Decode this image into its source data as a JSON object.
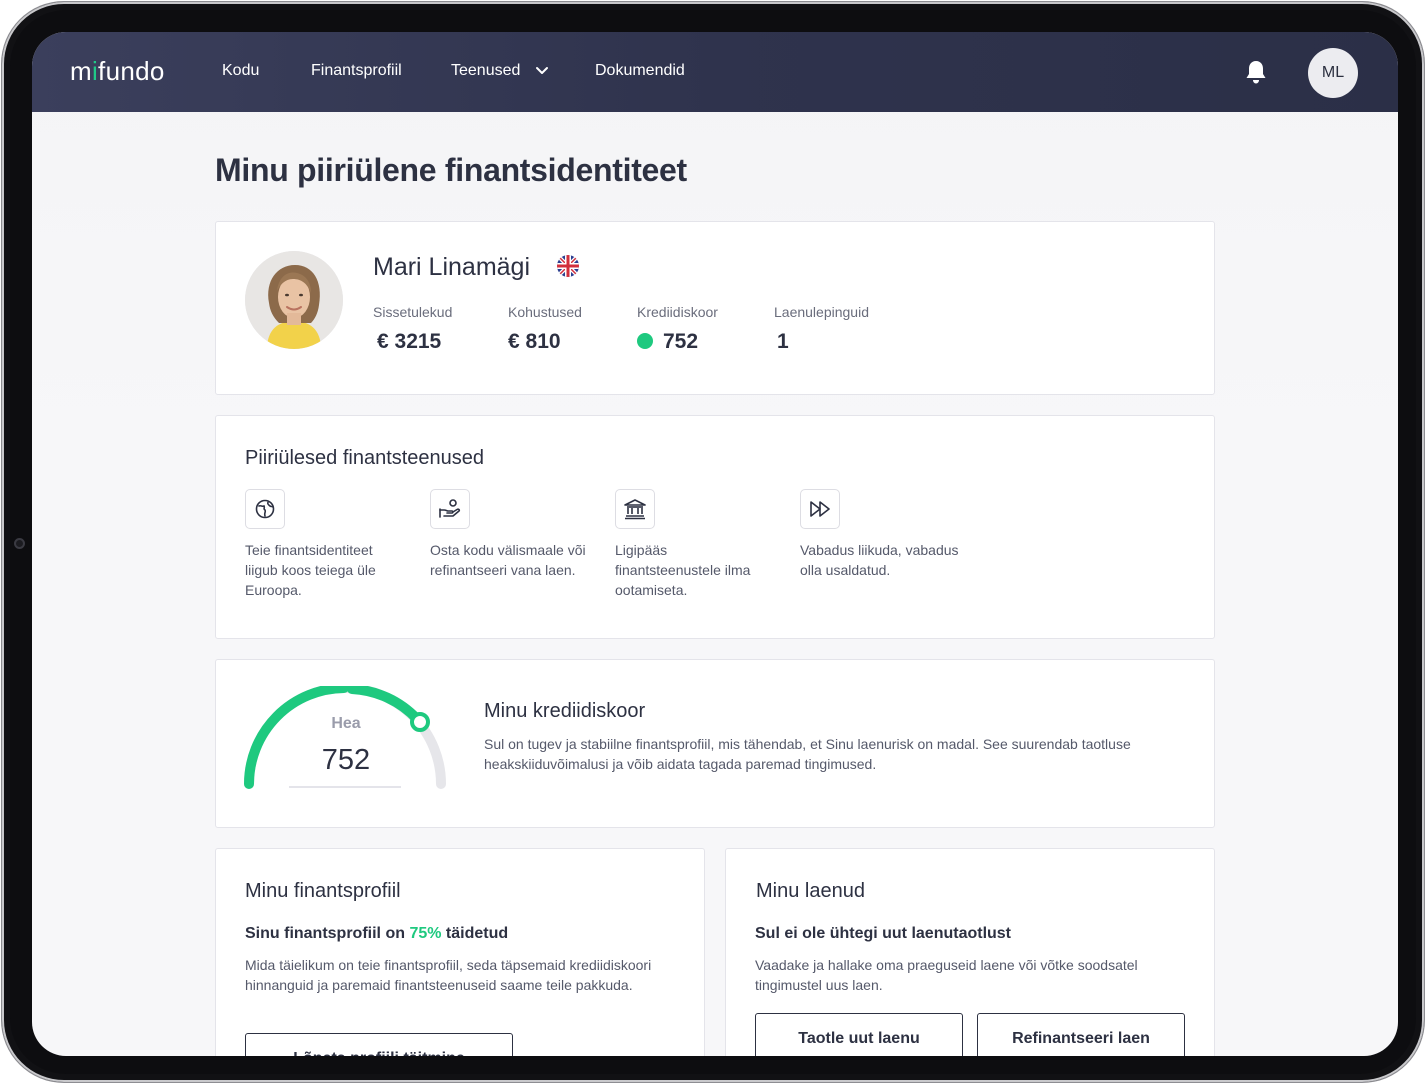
{
  "brand": {
    "logo_text_1": "m",
    "logo_dot": "i",
    "logo_text_2": "fundo",
    "accent": "#1ec97f",
    "nav_bg": "#2f334d"
  },
  "nav": {
    "items": [
      "Kodu",
      "Finantsprofiil",
      "Teenused",
      "Dokumendid"
    ],
    "avatar_initials": "ML"
  },
  "page": {
    "title": "Minu piiriülene finantsidentiteet"
  },
  "profile": {
    "name": "Mari Linamägi",
    "flag": "united-kingdom-flag",
    "stats": [
      {
        "label": "Sissetulekud",
        "value": "€ 3215"
      },
      {
        "label": "Kohustused",
        "value": "€ 810"
      },
      {
        "label": "Krediidiskoor",
        "value": "752"
      },
      {
        "label": "Laenulepinguid",
        "value": "1"
      }
    ]
  },
  "services": {
    "title": "Piiriülesed finantsteenused",
    "items": [
      {
        "icon": "globe-icon",
        "text": "Teie finantsidentiteet liigub koos teiega üle Euroopa."
      },
      {
        "icon": "hand-coin-icon",
        "text": "Osta kodu välismaale või refinantseeri vana laen."
      },
      {
        "icon": "bank-icon",
        "text": "Ligipääs finantsteenustele ilma ootamiseta."
      },
      {
        "icon": "fast-forward-icon",
        "text": "Vabadus liikuda, vabadus olla usaldatud."
      }
    ]
  },
  "credit_score": {
    "gauge_label": "Hea",
    "value": "752",
    "title": "Minu krediidiskoor",
    "description": "Sul on tugev ja stabiilne finantsprofiil, mis tähendab, et Sinu laenurisk on madal. See suurendab taotluse heakskiiduvõimalusi ja võib aidata tagada paremad tingimused."
  },
  "financial_profile": {
    "title": "Minu finantsprofiil",
    "heading_before": "Sinu finantsprofiil on ",
    "percent": "75%",
    "heading_after": " täidetud",
    "description": "Mida täielikum on teie finantsprofiil, seda täpsemaid krediidiskoori hinnanguid ja paremaid finantsteenuseid saame teile pakkuda.",
    "button_label": "Lõpeta profiili täitmine"
  },
  "loans": {
    "title": "Minu laenud",
    "heading": "Sul ei ole ühtegi uut laenutaotlust",
    "description": "Vaadake ja hallake oma praeguseid laene või võtke soodsatel tingimustel uus laen.",
    "apply_button": "Taotle uut laenu",
    "refinance_button": "Refinantseeri laen"
  }
}
